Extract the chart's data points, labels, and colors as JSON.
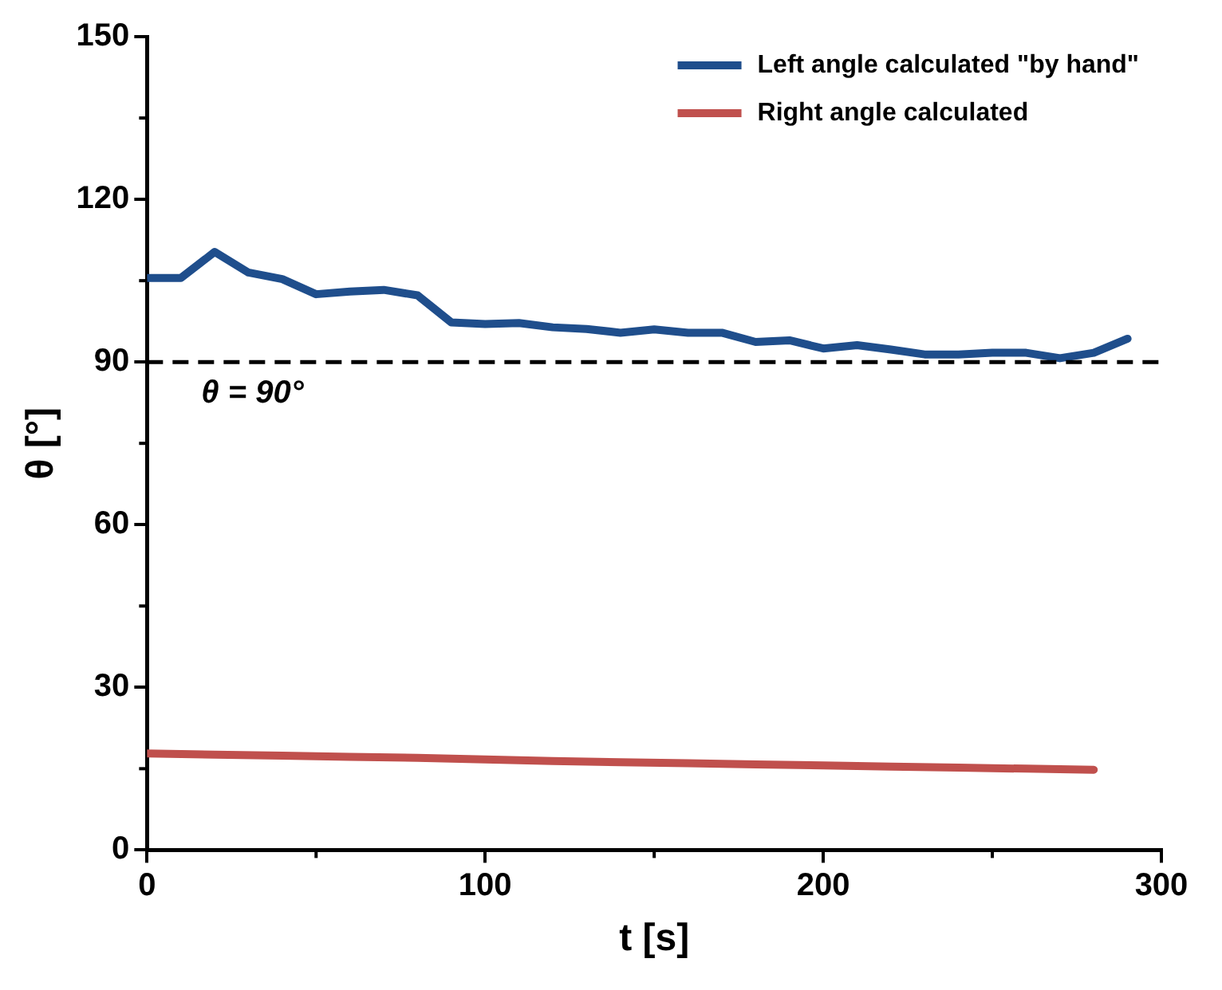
{
  "chart_data": {
    "type": "line",
    "xlabel": "t [s]",
    "ylabel": "θ [°]",
    "xlim": [
      0,
      300
    ],
    "xticks": [
      0,
      100,
      200,
      300
    ],
    "ylim": [
      0,
      150
    ],
    "yticks": [
      0,
      30,
      60,
      90,
      120,
      150
    ],
    "grid": false,
    "legend": "top right",
    "marker": "none",
    "line_style": "solid",
    "ref_lines": [
      {
        "axis": "y",
        "value": 90,
        "label": "θ = 90°",
        "color": "#000000",
        "line_style": "dashed"
      }
    ],
    "series": [
      {
        "name": "Left angle calculated \"by hand\"",
        "color": "#1f4e8c",
        "x": [
          0,
          10,
          20,
          30,
          40,
          50,
          60,
          70,
          80,
          90,
          100,
          110,
          120,
          130,
          140,
          150,
          160,
          170,
          180,
          190,
          200,
          210,
          220,
          230,
          240,
          250,
          260,
          270,
          280,
          290
        ],
        "values": [
          105.5,
          105.5,
          110.3,
          106.5,
          105.3,
          102.5,
          103,
          103.3,
          102.3,
          97.3,
          97,
          97.2,
          96.4,
          96.1,
          95.4,
          96,
          95.4,
          95.4,
          93.7,
          94,
          92.5,
          93.1,
          92.3,
          91.4,
          91.4,
          91.7,
          91.7,
          90.7,
          91.7,
          94.3
        ]
      },
      {
        "name": "Right angle calculated",
        "color": "#c0504d",
        "x": [
          0,
          20,
          40,
          60,
          80,
          100,
          120,
          140,
          160,
          180,
          200,
          220,
          240,
          260,
          280
        ],
        "values": [
          17.8,
          17.6,
          17.4,
          17.2,
          17,
          16.7,
          16.4,
          16.2,
          16,
          15.8,
          15.6,
          15.4,
          15.2,
          15,
          14.8
        ]
      }
    ]
  }
}
